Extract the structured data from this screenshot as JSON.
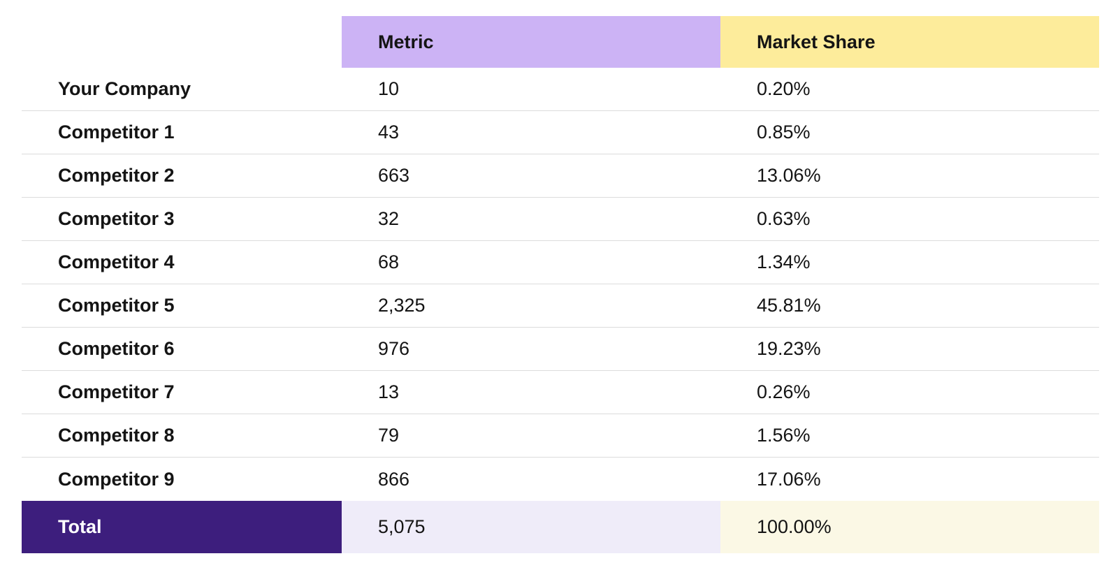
{
  "table": {
    "header": {
      "metric": "Metric",
      "market_share": "Market Share"
    },
    "rows": [
      {
        "label": "Your Company",
        "metric": "10",
        "share": "0.20%"
      },
      {
        "label": "Competitor 1",
        "metric": "43",
        "share": "0.85%"
      },
      {
        "label": "Competitor 2",
        "metric": "663",
        "share": "13.06%"
      },
      {
        "label": "Competitor 3",
        "metric": "32",
        "share": "0.63%"
      },
      {
        "label": "Competitor 4",
        "metric": "68",
        "share": "1.34%"
      },
      {
        "label": "Competitor 5",
        "metric": "2,325",
        "share": "45.81%"
      },
      {
        "label": "Competitor 6",
        "metric": "976",
        "share": "19.23%"
      },
      {
        "label": "Competitor 7",
        "metric": "13",
        "share": "0.26%"
      },
      {
        "label": "Competitor 8",
        "metric": "79",
        "share": "1.56%"
      },
      {
        "label": "Competitor 9",
        "metric": "866",
        "share": "17.06%"
      }
    ],
    "total": {
      "label": "Total",
      "metric": "5,075",
      "share": "100.00%"
    }
  },
  "chart_data": {
    "type": "table",
    "columns": [
      "",
      "Metric",
      "Market Share"
    ],
    "rows": [
      [
        "Your Company",
        10,
        "0.20%"
      ],
      [
        "Competitor 1",
        43,
        "0.85%"
      ],
      [
        "Competitor 2",
        663,
        "13.06%"
      ],
      [
        "Competitor 3",
        32,
        "0.63%"
      ],
      [
        "Competitor 4",
        68,
        "1.34%"
      ],
      [
        "Competitor 5",
        2325,
        "45.81%"
      ],
      [
        "Competitor 6",
        976,
        "19.23%"
      ],
      [
        "Competitor 7",
        13,
        "0.26%"
      ],
      [
        "Competitor 8",
        79,
        "1.56%"
      ],
      [
        "Competitor 9",
        866,
        "17.06%"
      ],
      [
        "Total",
        5075,
        "100.00%"
      ]
    ],
    "title": "",
    "notes": "Market share table; Metric column header highlighted purple, Market Share header highlighted yellow, Total row highlighted dark purple / lavender / cream."
  },
  "colors": {
    "metric_header_bg": "#ccb3f5",
    "share_header_bg": "#fdec9b",
    "total_label_bg": "#3d1e7d",
    "total_metric_bg": "#efecf9",
    "total_share_bg": "#fbf8e5",
    "divider": "#dcdcdc",
    "text": "#141414",
    "total_label_text": "#ffffff",
    "page_bg": "#ffffff"
  }
}
